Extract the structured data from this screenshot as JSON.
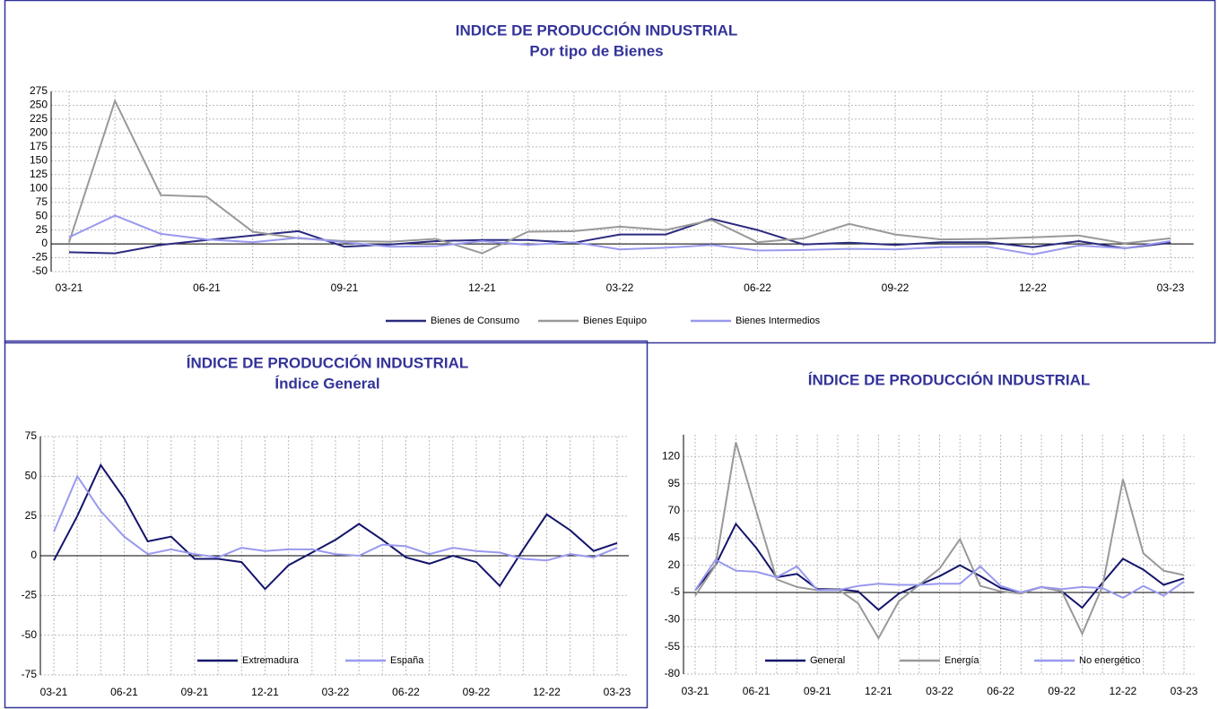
{
  "chart_data": [
    {
      "type": "line",
      "title": "INDICE DE PRODUCCIÓN INDUSTRIAL",
      "subtitle": "Por tipo de Bienes",
      "categories": [
        "03-21",
        null,
        null,
        "06-21",
        null,
        null,
        "09-21",
        null,
        null,
        "12-21",
        null,
        null,
        "03-22",
        null,
        null,
        "06-22",
        null,
        null,
        "09-22",
        null,
        null,
        "12-22",
        null,
        null,
        "03-23"
      ],
      "series": [
        {
          "name": "Bienes de Consumo",
          "color": "#2b2b80",
          "values": [
            -15,
            -17,
            -2,
            7,
            15,
            23,
            -5,
            -1,
            5,
            7,
            7,
            2,
            17,
            17,
            45,
            25,
            -1,
            2,
            -2,
            3,
            3,
            -6,
            5,
            -8,
            2
          ]
        },
        {
          "name": "Bienes Equipo",
          "color": "#999999",
          "values": [
            3,
            258,
            88,
            85,
            22,
            10,
            5,
            4,
            9,
            -17,
            22,
            23,
            31,
            25,
            43,
            3,
            10,
            36,
            17,
            8,
            9,
            12,
            15,
            1,
            10
          ]
        },
        {
          "name": "Bienes Intermedios",
          "color": "#9999ee",
          "values": [
            12,
            51,
            18,
            8,
            3,
            11,
            3,
            -5,
            -4,
            5,
            -2,
            3,
            -10,
            -7,
            -2,
            -12,
            -11,
            -9,
            -10,
            -6,
            -5,
            -19,
            -3,
            -8,
            5
          ]
        }
      ],
      "ylim": [
        -50,
        275
      ],
      "yticks": [
        -50,
        -25,
        0,
        25,
        50,
        75,
        100,
        125,
        150,
        175,
        200,
        225,
        250,
        275
      ],
      "axis_crossing": 0,
      "grid": true,
      "legend": "bottom"
    },
    {
      "type": "line",
      "title": "ÍNDICE DE PRODUCCIÓN INDUSTRIAL",
      "subtitle": "Índice General",
      "categories": [
        "03-21",
        null,
        null,
        "06-21",
        null,
        null,
        "09-21",
        null,
        null,
        "12-21",
        null,
        null,
        "03-22",
        null,
        null,
        "06-22",
        null,
        null,
        "09-22",
        null,
        null,
        "12-22",
        null,
        null,
        "03-23"
      ],
      "series": [
        {
          "name": "Extremadura",
          "color": "#14146b",
          "values": [
            -3,
            25,
            57,
            36,
            9,
            12,
            -2,
            -2,
            -4,
            -21,
            -6,
            2,
            10,
            20,
            10,
            -1,
            -5,
            0,
            -4,
            -19,
            4,
            26,
            16,
            3,
            8
          ]
        },
        {
          "name": "España",
          "color": "#9999ee",
          "values": [
            15,
            50,
            28,
            12,
            1,
            4,
            1,
            -1,
            5,
            3,
            4,
            4,
            1,
            0,
            7,
            6,
            1,
            5,
            3,
            2,
            -2,
            -3,
            1,
            -1,
            5
          ]
        }
      ],
      "ylim": [
        -75,
        75
      ],
      "yticks": [
        -75,
        -50,
        -25,
        0,
        25,
        50,
        75
      ],
      "axis_crossing": 0,
      "grid": true,
      "legend": "lower center"
    },
    {
      "type": "line",
      "title": "ÍNDICE DE PRODUCCIÓN INDUSTRIAL",
      "categories": [
        "03-21",
        null,
        null,
        "06-21",
        null,
        null,
        "09-21",
        null,
        null,
        "12-21",
        null,
        null,
        "03-22",
        null,
        null,
        "06-22",
        null,
        null,
        "09-22",
        null,
        null,
        "12-22",
        null,
        null,
        "03-23"
      ],
      "series": [
        {
          "name": "General",
          "color": "#14146b",
          "values": [
            -3,
            20,
            58,
            36,
            9,
            12,
            -2,
            -2,
            -4,
            -21,
            -6,
            2,
            10,
            20,
            10,
            -1,
            -5,
            0,
            -4,
            -19,
            4,
            26,
            16,
            2,
            8
          ]
        },
        {
          "name": "Energía",
          "color": "#999999",
          "values": [
            -8,
            20,
            133,
            70,
            7,
            0,
            -3,
            -2,
            -15,
            -47,
            -13,
            2,
            17,
            44,
            1,
            -4,
            -6,
            0,
            -4,
            -43,
            1,
            99,
            31,
            15,
            11
          ]
        },
        {
          "name": "No energético",
          "color": "#9999ee",
          "values": [
            -3,
            25,
            15,
            14,
            9,
            19,
            -3,
            -3,
            1,
            3,
            2,
            2,
            3,
            3,
            19,
            1,
            -5,
            0,
            -2,
            0,
            -1,
            -10,
            1,
            -8,
            5
          ]
        }
      ],
      "ylim": [
        -80,
        140
      ],
      "yticks": [
        -80,
        -55,
        -30,
        -5,
        20,
        45,
        70,
        95,
        120
      ],
      "axis_crossing": -5,
      "grid": true,
      "legend": "lower center"
    }
  ]
}
